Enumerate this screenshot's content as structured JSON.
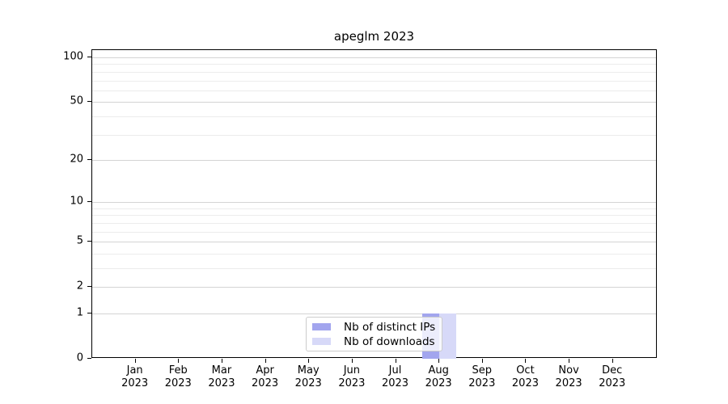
{
  "chart_data": {
    "type": "bar",
    "title": "apeglm 2023",
    "categories": [
      "Jan",
      "Feb",
      "Mar",
      "Apr",
      "May",
      "Jun",
      "Jul",
      "Aug",
      "Sep",
      "Oct",
      "Nov",
      "Dec"
    ],
    "category_year": "2023",
    "series": [
      {
        "name": "Nb of distinct IPs",
        "color": "#a2a5ee",
        "values": [
          0,
          0,
          0,
          0,
          0,
          0,
          0,
          1,
          0,
          0,
          0,
          0
        ]
      },
      {
        "name": "Nb of downloads",
        "color": "#d7d9f8",
        "values": [
          0,
          0,
          0,
          0,
          0,
          0,
          0,
          1,
          0,
          0,
          0,
          0
        ]
      }
    ],
    "yscale": "log1p",
    "ylim": [
      0,
      112
    ],
    "y_major_ticks": [
      0,
      1,
      2,
      5,
      10,
      20,
      50,
      100
    ],
    "y_minor_gridlines": [
      3,
      4,
      6,
      7,
      8,
      9,
      30,
      40,
      60,
      70,
      80,
      90
    ],
    "grid": "horizontal-only",
    "legend_position": "lower center",
    "colors": {
      "major_grid": "#d4d4d4",
      "minor_grid": "#ececec",
      "axis": "#000000",
      "background": "#ffffff"
    }
  }
}
